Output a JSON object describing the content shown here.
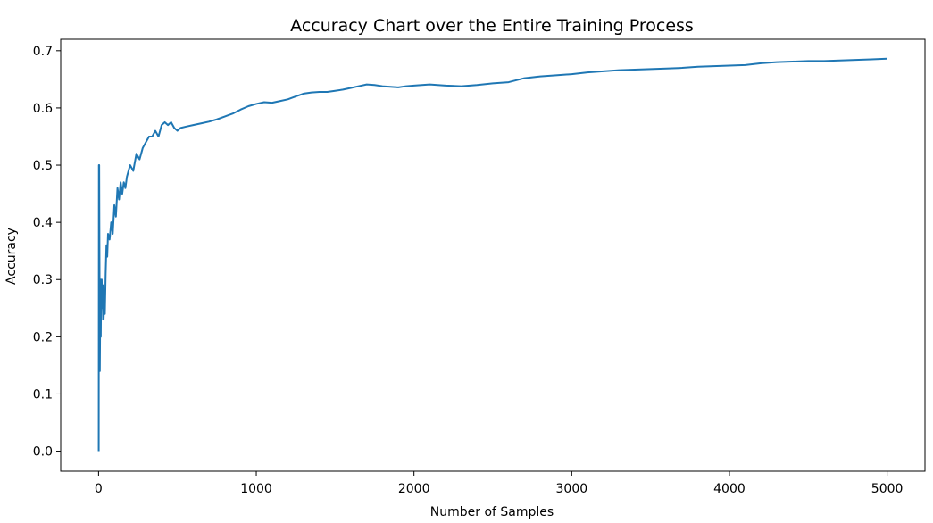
{
  "chart_data": {
    "type": "line",
    "title": "Accuracy Chart over the Entire Training Process",
    "xlabel": "Number of Samples",
    "ylabel": "Accuracy",
    "xlim": [
      -240,
      5240
    ],
    "ylim": [
      -0.035,
      0.72
    ],
    "x_ticks": [
      0,
      1000,
      2000,
      3000,
      4000,
      5000
    ],
    "x_tick_labels": [
      "0",
      "1000",
      "2000",
      "3000",
      "4000",
      "5000"
    ],
    "y_ticks": [
      0.0,
      0.1,
      0.2,
      0.3,
      0.4,
      0.5,
      0.6,
      0.7
    ],
    "y_tick_labels": [
      "0.0",
      "0.1",
      "0.2",
      "0.3",
      "0.4",
      "0.5",
      "0.6",
      "0.7"
    ],
    "grid": false,
    "line_color": "#1f77b4",
    "series": [
      {
        "x": [
          1,
          2,
          3,
          4,
          5,
          6,
          8,
          10,
          12,
          14,
          16,
          18,
          20,
          24,
          28,
          32,
          36,
          40,
          45,
          50,
          55,
          60,
          70,
          80,
          90,
          100,
          110,
          120,
          130,
          140,
          150,
          160,
          170,
          180,
          200,
          220,
          240,
          260,
          280,
          300,
          320,
          340,
          360,
          380,
          400,
          420,
          440,
          460,
          480,
          500,
          520,
          550,
          600,
          650,
          700,
          750,
          800,
          850,
          900,
          950,
          1000,
          1050,
          1100,
          1150,
          1200,
          1250,
          1300,
          1350,
          1400,
          1450,
          1500,
          1550,
          1600,
          1650,
          1700,
          1750,
          1800,
          1850,
          1900,
          1950,
          2000,
          2100,
          2200,
          2300,
          2400,
          2500,
          2600,
          2700,
          2800,
          2900,
          3000,
          3100,
          3200,
          3300,
          3400,
          3500,
          3600,
          3700,
          3800,
          3900,
          4000,
          4100,
          4200,
          4300,
          4400,
          4500,
          4600,
          4700,
          4800,
          4900,
          5000
        ],
        "values": [
          0.0,
          0.5,
          0.33,
          0.5,
          0.4,
          0.33,
          0.14,
          0.22,
          0.3,
          0.2,
          0.27,
          0.23,
          0.3,
          0.25,
          0.29,
          0.23,
          0.26,
          0.24,
          0.31,
          0.36,
          0.34,
          0.38,
          0.37,
          0.4,
          0.38,
          0.43,
          0.41,
          0.46,
          0.44,
          0.47,
          0.45,
          0.47,
          0.46,
          0.48,
          0.5,
          0.49,
          0.52,
          0.51,
          0.53,
          0.54,
          0.55,
          0.55,
          0.56,
          0.55,
          0.57,
          0.575,
          0.57,
          0.575,
          0.565,
          0.56,
          0.565,
          0.567,
          0.57,
          0.573,
          0.576,
          0.58,
          0.585,
          0.59,
          0.597,
          0.603,
          0.607,
          0.61,
          0.609,
          0.612,
          0.615,
          0.62,
          0.625,
          0.627,
          0.628,
          0.628,
          0.63,
          0.632,
          0.635,
          0.638,
          0.641,
          0.64,
          0.638,
          0.637,
          0.636,
          0.638,
          0.639,
          0.641,
          0.639,
          0.638,
          0.64,
          0.643,
          0.645,
          0.652,
          0.655,
          0.657,
          0.659,
          0.662,
          0.664,
          0.666,
          0.667,
          0.668,
          0.669,
          0.67,
          0.672,
          0.673,
          0.674,
          0.675,
          0.678,
          0.68,
          0.681,
          0.682,
          0.682,
          0.683,
          0.684,
          0.685,
          0.686
        ]
      }
    ]
  }
}
